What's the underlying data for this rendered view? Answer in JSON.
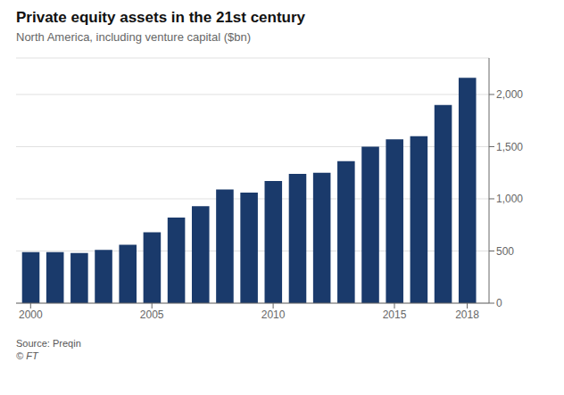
{
  "chart_data": {
    "type": "bar",
    "title": "Private equity assets in the 21st century",
    "subtitle": "North America, including venture capital ($bn)",
    "annotations": [
      "Source: Preqin",
      "© FT"
    ],
    "x": [
      2000,
      2001,
      2002,
      2003,
      2004,
      2005,
      2006,
      2007,
      2008,
      2009,
      2010,
      2011,
      2012,
      2013,
      2014,
      2015,
      2016,
      2017,
      2018
    ],
    "values": [
      490,
      490,
      480,
      510,
      560,
      680,
      820,
      930,
      1090,
      1060,
      1170,
      1240,
      1250,
      1360,
      1500,
      1570,
      1600,
      1900,
      2160
    ],
    "color": "#1a3a6b",
    "xlim": [
      1999.4,
      2018.9
    ],
    "xticks": [
      2000,
      2005,
      2010,
      2015,
      2018
    ],
    "ylim": [
      0,
      2350
    ],
    "yticks": [
      0,
      500,
      {
        "value": 1000,
        "label": "1,000"
      },
      {
        "value": 1500,
        "label": "1,500"
      },
      {
        "value": 2000,
        "label": "2,000"
      }
    ],
    "grid": true
  }
}
